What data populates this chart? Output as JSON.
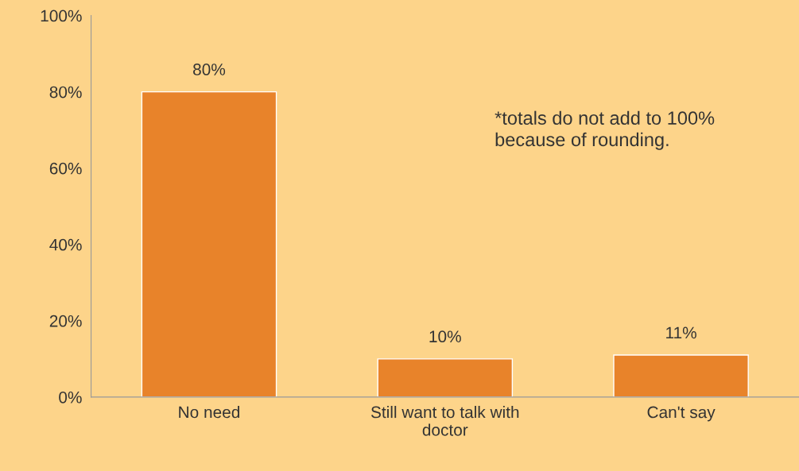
{
  "chart_data": {
    "type": "bar",
    "categories": [
      "No need",
      "Still want to talk with doctor",
      "Can't say"
    ],
    "values": [
      80,
      10,
      11
    ],
    "color": "#e8832a",
    "value_labels": [
      "80%",
      "10%",
      "11%"
    ],
    "ylim": [
      0,
      100
    ],
    "yticks": [
      {
        "value": 0,
        "label": "0%"
      },
      {
        "value": 20,
        "label": "20%"
      },
      {
        "value": 40,
        "label": "40%"
      },
      {
        "value": 60,
        "label": "60%"
      },
      {
        "value": 80,
        "label": "80%"
      },
      {
        "value": 100,
        "label": "100%"
      }
    ],
    "grid": false,
    "legend": false,
    "annotations": [
      "*totals do not add to 100% because of rounding."
    ]
  }
}
